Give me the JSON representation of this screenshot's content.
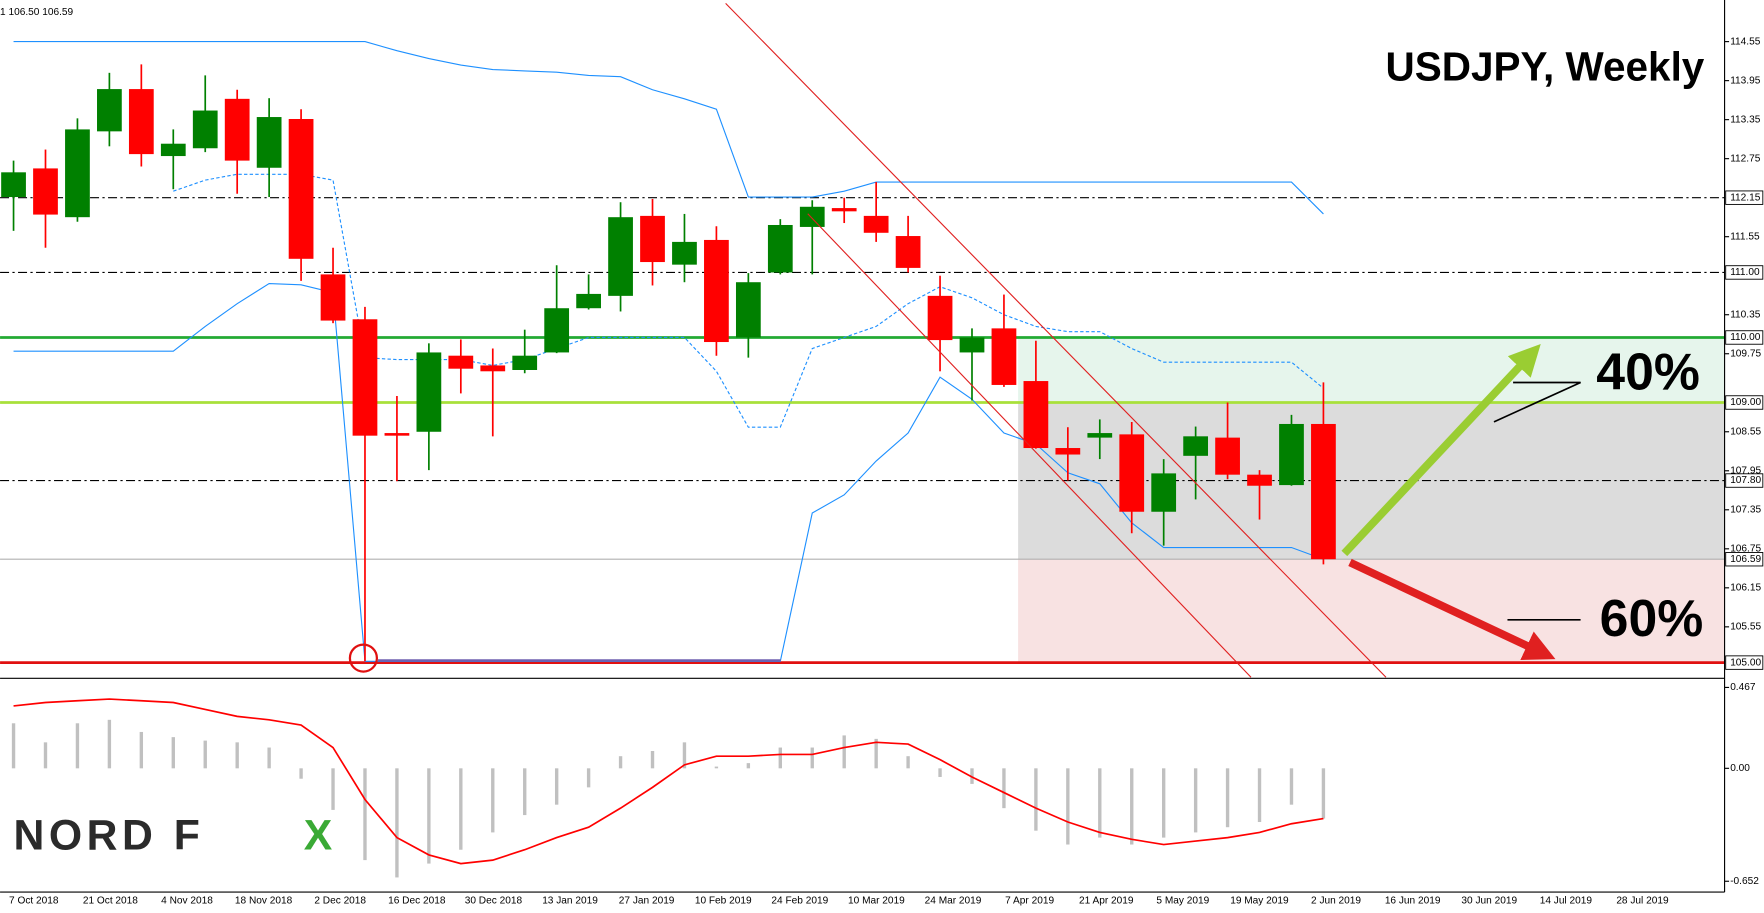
{
  "chart_data": [
    {
      "type": "candlestick",
      "title": "USDJPY, Weekly",
      "info": "1 106.50 106.59",
      "up_color": "#008000",
      "down_color": "#ff0000",
      "open": [
        112.16,
        112.6,
        111.85,
        113.17,
        113.82,
        112.79,
        112.91,
        113.67,
        112.61,
        113.36,
        110.97,
        110.28,
        108.53,
        108.55,
        109.72,
        109.57,
        109.5,
        109.77,
        110.45,
        110.64,
        111.87,
        111.12,
        111.5,
        110.0,
        111.0,
        111.7,
        111.99,
        111.87,
        111.56,
        110.64,
        109.77,
        110.14,
        109.33,
        108.3,
        108.46,
        108.51,
        107.32,
        108.18,
        108.46,
        107.89,
        107.73,
        108.67
      ],
      "high": [
        112.72,
        112.89,
        113.37,
        114.07,
        114.2,
        113.2,
        114.03,
        113.81,
        113.68,
        113.51,
        111.38,
        110.47,
        109.1,
        109.91,
        109.97,
        109.83,
        110.12,
        111.11,
        110.97,
        112.08,
        112.13,
        111.9,
        111.71,
        110.99,
        111.82,
        112.11,
        112.15,
        112.39,
        111.87,
        110.95,
        110.14,
        110.66,
        109.95,
        108.62,
        108.74,
        108.7,
        108.13,
        108.63,
        109.0,
        107.96,
        108.81,
        109.31
      ],
      "low": [
        111.64,
        111.38,
        111.78,
        112.94,
        112.63,
        112.28,
        112.85,
        112.21,
        112.16,
        110.87,
        110.22,
        105.02,
        107.79,
        107.96,
        109.14,
        108.48,
        109.45,
        109.76,
        110.43,
        110.4,
        110.8,
        110.85,
        109.72,
        109.69,
        110.97,
        110.97,
        111.76,
        111.47,
        111.0,
        109.48,
        109.03,
        109.24,
        108.29,
        107.8,
        108.13,
        106.99,
        106.8,
        107.51,
        107.82,
        107.2,
        107.72,
        106.51
      ],
      "close": [
        112.54,
        111.89,
        113.2,
        113.82,
        112.82,
        112.98,
        113.49,
        112.72,
        113.39,
        111.21,
        110.26,
        108.49,
        108.49,
        109.77,
        109.52,
        109.48,
        109.72,
        110.45,
        110.67,
        111.85,
        111.16,
        111.47,
        109.93,
        110.85,
        111.73,
        112.01,
        111.94,
        111.61,
        111.07,
        109.96,
        110.0,
        109.27,
        108.3,
        108.2,
        108.53,
        107.32,
        107.91,
        108.48,
        107.89,
        107.72,
        108.67,
        106.59
      ],
      "bands": {
        "color": "#1e90ff",
        "upper": [
          114.55,
          114.55,
          114.55,
          114.55,
          114.55,
          114.55,
          114.55,
          114.55,
          114.55,
          114.55,
          114.55,
          114.55,
          114.41,
          114.29,
          114.19,
          114.12,
          114.1,
          114.08,
          114.03,
          114.01,
          113.81,
          113.67,
          113.51,
          112.16,
          112.16,
          112.16,
          112.25,
          112.39,
          112.39,
          112.39,
          112.39,
          112.39,
          112.39,
          112.39,
          112.39,
          112.39,
          112.39,
          112.39,
          112.39,
          112.39,
          112.39,
          111.9
        ],
        "middle": [
          null,
          null,
          null,
          null,
          null,
          112.25,
          112.42,
          112.51,
          112.51,
          112.51,
          112.42,
          109.69,
          109.66,
          109.66,
          109.66,
          109.57,
          109.66,
          109.83,
          110.0,
          110.0,
          110.0,
          110.0,
          109.48,
          108.62,
          108.62,
          109.83,
          110.0,
          110.17,
          110.52,
          110.78,
          110.61,
          110.35,
          110.17,
          110.09,
          110.09,
          109.83,
          109.62,
          109.62,
          109.62,
          109.62,
          109.62,
          109.22
        ],
        "lower": [
          109.79,
          109.79,
          109.79,
          109.79,
          109.79,
          109.79,
          110.17,
          110.52,
          110.83,
          110.81,
          110.69,
          105.02,
          105.02,
          105.02,
          105.02,
          105.02,
          105.02,
          105.02,
          105.02,
          105.02,
          105.02,
          105.02,
          105.02,
          105.02,
          105.02,
          107.3,
          107.58,
          108.1,
          108.53,
          109.39,
          109.05,
          108.53,
          108.36,
          107.92,
          107.75,
          107.15,
          106.77,
          106.77,
          106.77,
          106.77,
          106.77,
          106.59
        ]
      },
      "ylim": [
        104.81,
        115.19
      ],
      "yticks": [
        114.55,
        113.95,
        113.35,
        112.75,
        111.55,
        110.35,
        109.75,
        108.55,
        107.95,
        107.35,
        106.75,
        106.15,
        105.55
      ],
      "levels": [
        {
          "value": 112.15,
          "color": "#000000",
          "style": "dashdot"
        },
        {
          "value": 111,
          "label": "111.00",
          "color": "#000000",
          "style": "dashdot"
        },
        {
          "value": 110,
          "label": "110.00",
          "color": "#22aa33",
          "style": "solid"
        },
        {
          "value": 109,
          "label": "109.00",
          "color": "#a8e03a",
          "style": "solid"
        },
        {
          "value": 107.8,
          "label": "107.80",
          "color": "#000000",
          "style": "dashdot"
        },
        {
          "value": 106.59,
          "color": "#b0b0b0",
          "style": "thin"
        },
        {
          "value": 105,
          "label": "105.00",
          "color": "#e01010",
          "style": "solid"
        }
      ],
      "x_labels": [
        "7 Oct 2018",
        "21 Oct 2018",
        "4 Nov 2018",
        "18 Nov 2018",
        "2 Dec 2018",
        "16 Dec 2018",
        "30 Dec 2018",
        "13 Jan 2019",
        "27 Jan 2019",
        "10 Feb 2019",
        "24 Feb 2019",
        "10 Mar 2019",
        "24 Mar 2019",
        "7 Apr 2019",
        "21 Apr 2019",
        "5 May 2019",
        "19 May 2019",
        "2 Jun 2019",
        "16 Jun 2019",
        "30 Jun 2019",
        "14 Jul 2019",
        "28 Jul 2019"
      ],
      "annotations": [
        "40%",
        "60%"
      ],
      "logo": [
        "NORD F",
        "X"
      ]
    },
    {
      "type": "histogram",
      "values": [
        0.26,
        0.15,
        0.26,
        0.28,
        0.21,
        0.18,
        0.16,
        0.15,
        0.12,
        -0.06,
        -0.24,
        -0.53,
        -0.63,
        -0.55,
        -0.47,
        -0.37,
        -0.27,
        -0.21,
        -0.11,
        0.07,
        0.1,
        0.15,
        0.01,
        0.03,
        0.12,
        0.12,
        0.19,
        0.17,
        0.07,
        -0.05,
        -0.09,
        -0.23,
        -0.36,
        -0.44,
        -0.4,
        -0.44,
        -0.4,
        -0.37,
        -0.34,
        -0.31,
        -0.21,
        -0.29
      ],
      "color": "#c0c0c0",
      "signal": [
        0.36,
        0.38,
        0.39,
        0.4,
        0.39,
        0.38,
        0.34,
        0.3,
        0.28,
        0.25,
        0.12,
        -0.18,
        -0.4,
        -0.5,
        -0.55,
        -0.53,
        -0.47,
        -0.4,
        -0.34,
        -0.23,
        -0.11,
        0.02,
        0.07,
        0.07,
        0.08,
        0.08,
        0.12,
        0.15,
        0.14,
        0.05,
        -0.05,
        -0.14,
        -0.23,
        -0.31,
        -0.37,
        -0.41,
        -0.44,
        -0.42,
        -0.4,
        -0.37,
        -0.32,
        -0.29
      ],
      "signal_color": "#ff0000",
      "ylim": [
        -0.695,
        0.513
      ],
      "yticks": [
        0.467,
        {
          "value": 0,
          "label": "0.00"
        },
        -0.652
      ]
    }
  ]
}
